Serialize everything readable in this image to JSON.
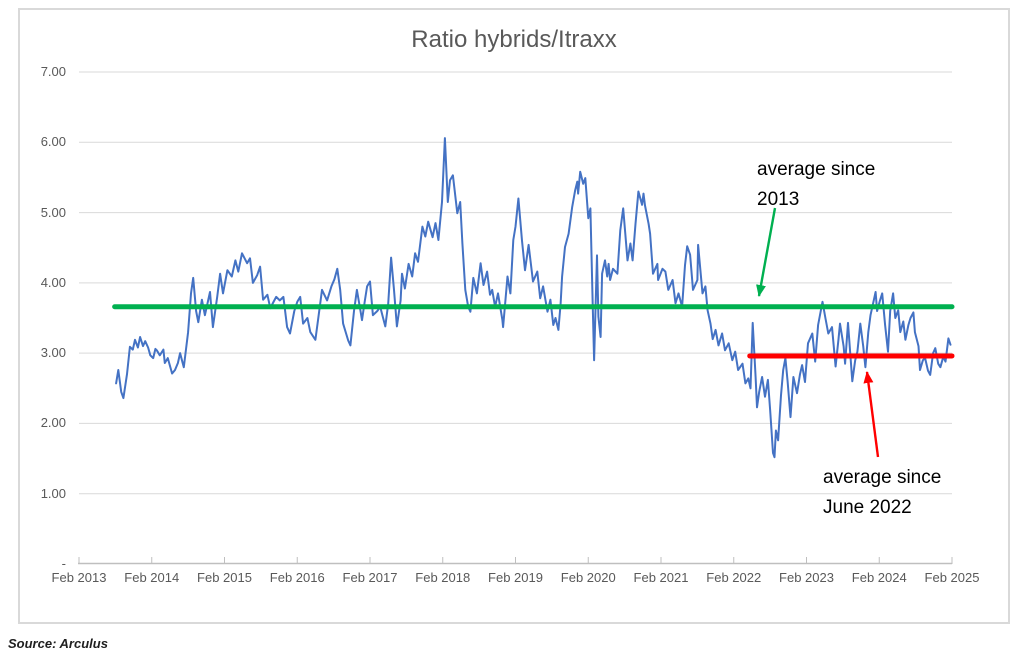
{
  "title": "Ratio hybrids/Itraxx",
  "source": "Source: Arculus",
  "annotations": {
    "green": {
      "line1": "average since",
      "line2": "2013"
    },
    "red": {
      "line1": "average since",
      "line2": "June 2022"
    }
  },
  "colors": {
    "series_blue": "#4472C4",
    "average_2013_green": "#00B050",
    "average_june2022_red": "#FF0000",
    "gridline": "#D9D9D9",
    "axis_line": "#BFBFBF",
    "axis_text": "#595959",
    "annotation_text": "#000000",
    "frame_border": "#D9D9D9"
  },
  "chart_data": {
    "type": "line",
    "title": "Ratio hybrids/Itraxx",
    "xlabel": "",
    "ylabel": "",
    "ylim": [
      0,
      7
    ],
    "grid": true,
    "x_tick_labels": [
      "Feb 2013",
      "Feb 2014",
      "Feb 2015",
      "Feb 2016",
      "Feb 2017",
      "Feb 2018",
      "Feb 2019",
      "Feb 2020",
      "Feb 2021",
      "Feb 2022",
      "Feb 2023",
      "Feb 2024",
      "Feb 2025"
    ],
    "y_ticks": [
      {
        "value": 7,
        "label": "7.00"
      },
      {
        "value": 6,
        "label": "6.00"
      },
      {
        "value": 5,
        "label": "5.00"
      },
      {
        "value": 4,
        "label": "4.00"
      },
      {
        "value": 3,
        "label": "3.00"
      },
      {
        "value": 2,
        "label": "2.00"
      },
      {
        "value": 1,
        "label": "1.00"
      },
      {
        "value": 0,
        "label": "-"
      }
    ],
    "x_unit": "years since Feb 2013",
    "series": [
      {
        "name": "Ratio hybrids/Itraxx",
        "color": "#4472C4",
        "points": [
          [
            0.51,
            2.57
          ],
          [
            0.54,
            2.76
          ],
          [
            0.58,
            2.45
          ],
          [
            0.61,
            2.36
          ],
          [
            0.66,
            2.7
          ],
          [
            0.7,
            3.09
          ],
          [
            0.74,
            3.05
          ],
          [
            0.77,
            3.19
          ],
          [
            0.81,
            3.08
          ],
          [
            0.84,
            3.23
          ],
          [
            0.88,
            3.1
          ],
          [
            0.91,
            3.17
          ],
          [
            0.95,
            3.08
          ],
          [
            0.98,
            2.97
          ],
          [
            1.02,
            2.93
          ],
          [
            1.05,
            3.06
          ],
          [
            1.07,
            3.04
          ],
          [
            1.11,
            2.97
          ],
          [
            1.16,
            3.05
          ],
          [
            1.18,
            2.86
          ],
          [
            1.22,
            2.93
          ],
          [
            1.28,
            2.71
          ],
          [
            1.32,
            2.76
          ],
          [
            1.36,
            2.86
          ],
          [
            1.39,
            3.0
          ],
          [
            1.42,
            2.88
          ],
          [
            1.44,
            2.8
          ],
          [
            1.5,
            3.3
          ],
          [
            1.54,
            3.85
          ],
          [
            1.57,
            4.07
          ],
          [
            1.61,
            3.6
          ],
          [
            1.64,
            3.44
          ],
          [
            1.69,
            3.76
          ],
          [
            1.73,
            3.54
          ],
          [
            1.8,
            3.87
          ],
          [
            1.84,
            3.37
          ],
          [
            1.9,
            3.8
          ],
          [
            1.94,
            4.13
          ],
          [
            1.98,
            3.85
          ],
          [
            2.04,
            4.18
          ],
          [
            2.1,
            4.09
          ],
          [
            2.15,
            4.32
          ],
          [
            2.19,
            4.16
          ],
          [
            2.24,
            4.42
          ],
          [
            2.31,
            4.28
          ],
          [
            2.35,
            4.35
          ],
          [
            2.39,
            4.0
          ],
          [
            2.45,
            4.11
          ],
          [
            2.49,
            4.23
          ],
          [
            2.53,
            3.76
          ],
          [
            2.59,
            3.83
          ],
          [
            2.63,
            3.64
          ],
          [
            2.67,
            3.72
          ],
          [
            2.71,
            3.8
          ],
          [
            2.76,
            3.75
          ],
          [
            2.81,
            3.8
          ],
          [
            2.86,
            3.37
          ],
          [
            2.9,
            3.28
          ],
          [
            2.96,
            3.6
          ],
          [
            3.0,
            3.73
          ],
          [
            3.04,
            3.8
          ],
          [
            3.08,
            3.42
          ],
          [
            3.14,
            3.5
          ],
          [
            3.18,
            3.3
          ],
          [
            3.25,
            3.19
          ],
          [
            3.29,
            3.5
          ],
          [
            3.34,
            3.9
          ],
          [
            3.41,
            3.75
          ],
          [
            3.47,
            3.95
          ],
          [
            3.51,
            4.05
          ],
          [
            3.55,
            4.2
          ],
          [
            3.59,
            3.9
          ],
          [
            3.63,
            3.42
          ],
          [
            3.7,
            3.18
          ],
          [
            3.73,
            3.11
          ],
          [
            3.78,
            3.6
          ],
          [
            3.82,
            3.9
          ],
          [
            3.87,
            3.6
          ],
          [
            3.89,
            3.47
          ],
          [
            3.93,
            3.75
          ],
          [
            3.96,
            3.95
          ],
          [
            4.0,
            4.02
          ],
          [
            4.04,
            3.54
          ],
          [
            4.1,
            3.6
          ],
          [
            4.14,
            3.66
          ],
          [
            4.18,
            3.5
          ],
          [
            4.21,
            3.38
          ],
          [
            4.25,
            3.7
          ],
          [
            4.29,
            4.36
          ],
          [
            4.33,
            3.9
          ],
          [
            4.37,
            3.38
          ],
          [
            4.42,
            3.75
          ],
          [
            4.44,
            4.13
          ],
          [
            4.48,
            3.92
          ],
          [
            4.53,
            4.27
          ],
          [
            4.58,
            4.09
          ],
          [
            4.62,
            4.42
          ],
          [
            4.66,
            4.3
          ],
          [
            4.72,
            4.8
          ],
          [
            4.76,
            4.66
          ],
          [
            4.8,
            4.87
          ],
          [
            4.86,
            4.65
          ],
          [
            4.9,
            4.85
          ],
          [
            4.94,
            4.61
          ],
          [
            4.99,
            5.15
          ],
          [
            5.03,
            6.06
          ],
          [
            5.07,
            5.15
          ],
          [
            5.1,
            5.46
          ],
          [
            5.14,
            5.53
          ],
          [
            5.2,
            4.99
          ],
          [
            5.24,
            5.15
          ],
          [
            5.27,
            4.56
          ],
          [
            5.31,
            3.9
          ],
          [
            5.35,
            3.66
          ],
          [
            5.38,
            3.59
          ],
          [
            5.42,
            4.07
          ],
          [
            5.47,
            3.85
          ],
          [
            5.52,
            4.28
          ],
          [
            5.56,
            3.97
          ],
          [
            5.61,
            4.16
          ],
          [
            5.65,
            3.83
          ],
          [
            5.68,
            3.9
          ],
          [
            5.72,
            3.66
          ],
          [
            5.76,
            3.85
          ],
          [
            5.82,
            3.47
          ],
          [
            5.83,
            3.37
          ],
          [
            5.89,
            4.09
          ],
          [
            5.93,
            3.85
          ],
          [
            5.97,
            4.61
          ],
          [
            6.0,
            4.8
          ],
          [
            6.04,
            5.2
          ],
          [
            6.09,
            4.6
          ],
          [
            6.13,
            4.18
          ],
          [
            6.18,
            4.54
          ],
          [
            6.24,
            4.02
          ],
          [
            6.3,
            4.16
          ],
          [
            6.34,
            3.78
          ],
          [
            6.38,
            3.95
          ],
          [
            6.44,
            3.59
          ],
          [
            6.48,
            3.76
          ],
          [
            6.52,
            3.4
          ],
          [
            6.55,
            3.5
          ],
          [
            6.59,
            3.33
          ],
          [
            6.62,
            3.7
          ],
          [
            6.64,
            4.09
          ],
          [
            6.68,
            4.51
          ],
          [
            6.73,
            4.7
          ],
          [
            6.78,
            5.08
          ],
          [
            6.82,
            5.32
          ],
          [
            6.85,
            5.44
          ],
          [
            6.86,
            5.27
          ],
          [
            6.89,
            5.58
          ],
          [
            6.93,
            5.41
          ],
          [
            6.96,
            5.49
          ],
          [
            7.0,
            4.92
          ],
          [
            7.03,
            5.06
          ],
          [
            7.06,
            3.75
          ],
          [
            7.08,
            2.9
          ],
          [
            7.12,
            4.39
          ],
          [
            7.14,
            3.52
          ],
          [
            7.17,
            3.23
          ],
          [
            7.19,
            4.13
          ],
          [
            7.23,
            4.32
          ],
          [
            7.26,
            4.09
          ],
          [
            7.28,
            4.27
          ],
          [
            7.3,
            4.04
          ],
          [
            7.34,
            4.2
          ],
          [
            7.4,
            4.13
          ],
          [
            7.44,
            4.75
          ],
          [
            7.48,
            5.06
          ],
          [
            7.54,
            4.32
          ],
          [
            7.58,
            4.56
          ],
          [
            7.61,
            4.32
          ],
          [
            7.65,
            4.84
          ],
          [
            7.69,
            5.3
          ],
          [
            7.74,
            5.11
          ],
          [
            7.76,
            5.27
          ],
          [
            7.78,
            5.1
          ],
          [
            7.83,
            4.84
          ],
          [
            7.85,
            4.7
          ],
          [
            7.89,
            4.13
          ],
          [
            7.95,
            4.27
          ],
          [
            7.96,
            4.04
          ],
          [
            8.02,
            4.2
          ],
          [
            8.06,
            4.16
          ],
          [
            8.1,
            3.9
          ],
          [
            8.16,
            4.04
          ],
          [
            8.2,
            3.71
          ],
          [
            8.24,
            3.85
          ],
          [
            8.29,
            3.66
          ],
          [
            8.33,
            4.25
          ],
          [
            8.36,
            4.52
          ],
          [
            8.4,
            4.4
          ],
          [
            8.44,
            3.9
          ],
          [
            8.5,
            4.04
          ],
          [
            8.51,
            4.54
          ],
          [
            8.57,
            3.85
          ],
          [
            8.61,
            3.95
          ],
          [
            8.64,
            3.61
          ],
          [
            8.68,
            3.42
          ],
          [
            8.71,
            3.2
          ],
          [
            8.75,
            3.33
          ],
          [
            8.79,
            3.11
          ],
          [
            8.84,
            3.28
          ],
          [
            8.88,
            3.04
          ],
          [
            8.93,
            3.14
          ],
          [
            8.98,
            2.9
          ],
          [
            9.02,
            3.02
          ],
          [
            9.06,
            2.76
          ],
          [
            9.12,
            2.85
          ],
          [
            9.16,
            2.57
          ],
          [
            9.2,
            2.64
          ],
          [
            9.23,
            2.5
          ],
          [
            9.26,
            3.43
          ],
          [
            9.3,
            2.66
          ],
          [
            9.32,
            2.23
          ],
          [
            9.35,
            2.45
          ],
          [
            9.39,
            2.66
          ],
          [
            9.43,
            2.38
          ],
          [
            9.47,
            2.62
          ],
          [
            9.5,
            2.2
          ],
          [
            9.54,
            1.58
          ],
          [
            9.56,
            1.52
          ],
          [
            9.58,
            1.9
          ],
          [
            9.61,
            1.76
          ],
          [
            9.65,
            2.4
          ],
          [
            9.68,
            2.76
          ],
          [
            9.71,
            2.93
          ],
          [
            9.74,
            2.6
          ],
          [
            9.78,
            2.09
          ],
          [
            9.82,
            2.66
          ],
          [
            9.87,
            2.43
          ],
          [
            9.91,
            2.7
          ],
          [
            9.94,
            2.83
          ],
          [
            9.98,
            2.59
          ],
          [
            10.02,
            3.14
          ],
          [
            10.08,
            3.28
          ],
          [
            10.12,
            2.88
          ],
          [
            10.16,
            3.4
          ],
          [
            10.22,
            3.73
          ],
          [
            10.26,
            3.5
          ],
          [
            10.3,
            3.28
          ],
          [
            10.35,
            3.37
          ],
          [
            10.4,
            2.81
          ],
          [
            10.44,
            3.2
          ],
          [
            10.46,
            3.42
          ],
          [
            10.51,
            3.1
          ],
          [
            10.53,
            2.85
          ],
          [
            10.57,
            3.43
          ],
          [
            10.63,
            2.6
          ],
          [
            10.67,
            2.9
          ],
          [
            10.7,
            3.02
          ],
          [
            10.74,
            3.42
          ],
          [
            10.78,
            3.1
          ],
          [
            10.81,
            2.8
          ],
          [
            10.85,
            3.3
          ],
          [
            10.88,
            3.54
          ],
          [
            10.95,
            3.87
          ],
          [
            10.97,
            3.6
          ],
          [
            11.01,
            3.75
          ],
          [
            11.04,
            3.85
          ],
          [
            11.08,
            3.4
          ],
          [
            11.12,
            3.02
          ],
          [
            11.15,
            3.6
          ],
          [
            11.19,
            3.85
          ],
          [
            11.22,
            3.5
          ],
          [
            11.26,
            3.61
          ],
          [
            11.29,
            3.3
          ],
          [
            11.33,
            3.45
          ],
          [
            11.36,
            3.19
          ],
          [
            11.4,
            3.4
          ],
          [
            11.43,
            3.5
          ],
          [
            11.47,
            3.58
          ],
          [
            11.49,
            3.3
          ],
          [
            11.54,
            3.1
          ],
          [
            11.56,
            2.76
          ],
          [
            11.6,
            2.9
          ],
          [
            11.63,
            2.93
          ],
          [
            11.67,
            2.75
          ],
          [
            11.7,
            2.69
          ],
          [
            11.74,
            3.0
          ],
          [
            11.77,
            3.07
          ],
          [
            11.81,
            2.85
          ],
          [
            11.84,
            2.8
          ],
          [
            11.88,
            2.95
          ],
          [
            11.91,
            2.88
          ],
          [
            11.95,
            3.21
          ],
          [
            11.98,
            3.12
          ]
        ]
      },
      {
        "name": "average since 2013",
        "type": "hline",
        "color": "#00B050",
        "value": 3.66,
        "span": [
          0.49,
          12.0
        ]
      },
      {
        "name": "average since June 2022",
        "type": "hline",
        "color": "#FF0000",
        "value": 2.96,
        "span": [
          9.22,
          12.0
        ]
      }
    ]
  }
}
